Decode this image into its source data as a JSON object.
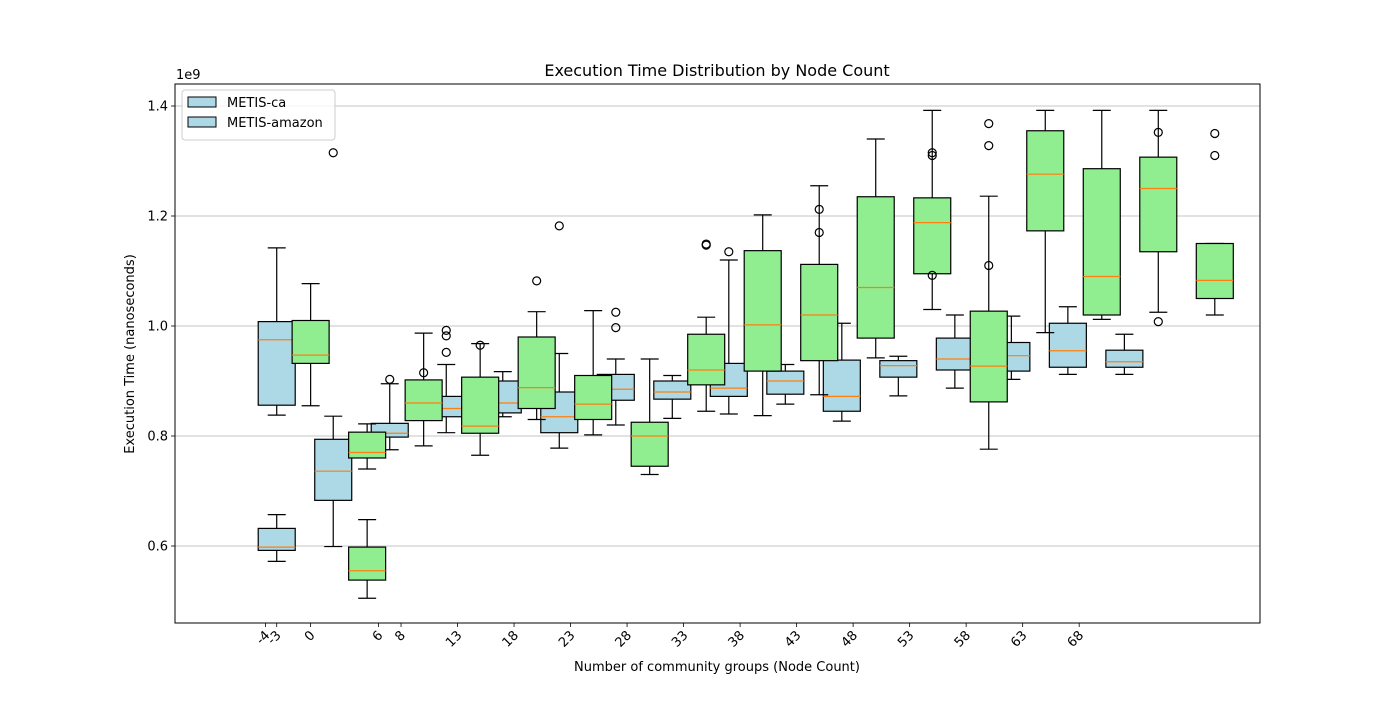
{
  "chart_data": {
    "type": "box",
    "title": "Execution Time Distribution by Node Count",
    "xlabel": "Number of community groups (Node Count)",
    "ylabel": "Execution Time (nanoseconds)",
    "y_offset_label": "1e9",
    "ylim": [
      0.46,
      1.44
    ],
    "y_unit_multiplier": 1000000000,
    "yticks": [
      0.6,
      0.8,
      1.0,
      1.2,
      1.4
    ],
    "ytick_labels": [
      "0.6",
      "0.8",
      "1.0",
      "1.2",
      "1.4"
    ],
    "xlim": [
      -12,
      84
    ],
    "xticks": [
      -4,
      -3,
      0,
      6,
      8,
      13,
      18,
      23,
      28,
      33,
      38,
      43,
      48,
      53,
      58,
      63,
      68
    ],
    "xtick_labels": [
      "-4",
      "-3",
      "0",
      "6",
      "8",
      "13",
      "18",
      "23",
      "28",
      "33",
      "38",
      "43",
      "48",
      "53",
      "58",
      "63",
      "68"
    ],
    "grid": "y",
    "legend_position": "upper-left",
    "median_color": "#ff7f0e",
    "series": [
      {
        "name": "METIS-ca",
        "color": "#add8e6",
        "boxes": [
          {
            "x": -3,
            "whislo": 0.838,
            "q1": 0.856,
            "med": 0.975,
            "q3": 1.008,
            "whishi": 1.142,
            "fliers": []
          },
          {
            "x": -3,
            "whislo": 0.572,
            "q1": 0.592,
            "med": 0.598,
            "q3": 0.632,
            "whishi": 0.657,
            "fliers": []
          },
          {
            "x": 2,
            "whislo": 0.599,
            "q1": 0.683,
            "med": 0.736,
            "q3": 0.794,
            "whishi": 0.836,
            "fliers": [
              1.315
            ]
          },
          {
            "x": 7,
            "whislo": 0.775,
            "q1": 0.798,
            "med": 0.805,
            "q3": 0.823,
            "whishi": 0.895,
            "fliers": [
              0.903
            ]
          },
          {
            "x": 12,
            "whislo": 0.806,
            "q1": 0.835,
            "med": 0.85,
            "q3": 0.872,
            "whishi": 0.93,
            "fliers": [
              0.952,
              0.982,
              0.992
            ]
          },
          {
            "x": 17,
            "whislo": 0.835,
            "q1": 0.842,
            "med": 0.86,
            "q3": 0.9,
            "whishi": 0.917,
            "fliers": []
          },
          {
            "x": 22,
            "whislo": 0.778,
            "q1": 0.806,
            "med": 0.835,
            "q3": 0.88,
            "whishi": 0.95,
            "fliers": [
              1.182
            ]
          },
          {
            "x": 27,
            "whislo": 0.82,
            "q1": 0.865,
            "med": 0.885,
            "q3": 0.912,
            "whishi": 0.94,
            "fliers": [
              0.997,
              1.025
            ]
          },
          {
            "x": 32,
            "whislo": 0.832,
            "q1": 0.867,
            "med": 0.88,
            "q3": 0.9,
            "whishi": 0.91,
            "fliers": []
          },
          {
            "x": 37,
            "whislo": 0.84,
            "q1": 0.872,
            "med": 0.887,
            "q3": 0.932,
            "whishi": 1.12,
            "fliers": [
              1.135
            ]
          },
          {
            "x": 42,
            "whislo": 0.858,
            "q1": 0.876,
            "med": 0.9,
            "q3": 0.918,
            "whishi": 0.93,
            "fliers": []
          },
          {
            "x": 47,
            "whislo": 0.827,
            "q1": 0.845,
            "med": 0.872,
            "q3": 0.938,
            "whishi": 1.005,
            "fliers": []
          },
          {
            "x": 52,
            "whislo": 0.873,
            "q1": 0.907,
            "med": 0.928,
            "q3": 0.937,
            "whishi": 0.945,
            "fliers": []
          },
          {
            "x": 57,
            "whislo": 0.887,
            "q1": 0.92,
            "med": 0.94,
            "q3": 0.978,
            "whishi": 1.02,
            "fliers": []
          },
          {
            "x": 62,
            "whislo": 0.903,
            "q1": 0.918,
            "med": 0.946,
            "q3": 0.97,
            "whishi": 1.018,
            "fliers": []
          },
          {
            "x": 67,
            "whislo": 0.912,
            "q1": 0.925,
            "med": 0.955,
            "q3": 1.005,
            "whishi": 1.035,
            "fliers": []
          },
          {
            "x": 72,
            "whislo": 0.912,
            "q1": 0.925,
            "med": 0.935,
            "q3": 0.956,
            "whishi": 0.985,
            "fliers": []
          }
        ]
      },
      {
        "name": "METIS-amazon",
        "color": "#90ee90",
        "boxes": [
          {
            "x": 0,
            "whislo": 0.855,
            "q1": 0.932,
            "med": 0.947,
            "q3": 1.01,
            "whishi": 1.077,
            "fliers": []
          },
          {
            "x": 5,
            "whislo": 0.505,
            "q1": 0.538,
            "med": 0.555,
            "q3": 0.598,
            "whishi": 0.648,
            "fliers": []
          },
          {
            "x": 5,
            "whislo": 0.74,
            "q1": 0.76,
            "med": 0.77,
            "q3": 0.807,
            "whishi": 0.822,
            "fliers": []
          },
          {
            "x": 10,
            "whislo": 0.782,
            "q1": 0.828,
            "med": 0.86,
            "q3": 0.902,
            "whishi": 0.987,
            "fliers": [
              0.915
            ]
          },
          {
            "x": 15,
            "whislo": 0.765,
            "q1": 0.805,
            "med": 0.818,
            "q3": 0.907,
            "whishi": 0.968,
            "fliers": [
              0.965
            ]
          },
          {
            "x": 20,
            "whislo": 0.83,
            "q1": 0.85,
            "med": 0.888,
            "q3": 0.98,
            "whishi": 1.026,
            "fliers": [
              1.082
            ]
          },
          {
            "x": 25,
            "whislo": 0.802,
            "q1": 0.83,
            "med": 0.858,
            "q3": 0.91,
            "whishi": 1.028,
            "fliers": []
          },
          {
            "x": 30,
            "whislo": 0.73,
            "q1": 0.745,
            "med": 0.8,
            "q3": 0.825,
            "whishi": 0.94,
            "fliers": []
          },
          {
            "x": 35,
            "whislo": 0.845,
            "q1": 0.893,
            "med": 0.92,
            "q3": 0.985,
            "whishi": 1.016,
            "fliers": [
              1.147,
              1.149
            ]
          },
          {
            "x": 40,
            "whislo": 0.837,
            "q1": 0.918,
            "med": 1.002,
            "q3": 1.137,
            "whishi": 1.202,
            "fliers": []
          },
          {
            "x": 45,
            "whislo": 0.875,
            "q1": 0.937,
            "med": 1.02,
            "q3": 1.112,
            "whishi": 1.255,
            "fliers": [
              1.17,
              1.212
            ]
          },
          {
            "x": 50,
            "whislo": 0.942,
            "q1": 0.978,
            "med": 1.07,
            "q3": 1.235,
            "whishi": 1.34,
            "fliers": []
          },
          {
            "x": 55,
            "whislo": 1.03,
            "q1": 1.095,
            "med": 1.188,
            "q3": 1.233,
            "whishi": 1.392,
            "fliers": [
              1.092,
              1.31,
              1.315
            ]
          },
          {
            "x": 60,
            "whislo": 0.776,
            "q1": 0.862,
            "med": 0.927,
            "q3": 1.027,
            "whishi": 1.236,
            "fliers": [
              1.11,
              1.328,
              1.368
            ]
          },
          {
            "x": 65,
            "whislo": 0.988,
            "q1": 1.173,
            "med": 1.276,
            "q3": 1.355,
            "whishi": 1.392,
            "fliers": []
          },
          {
            "x": 70,
            "whislo": 1.012,
            "q1": 1.02,
            "med": 1.09,
            "q3": 1.286,
            "whishi": 1.392,
            "fliers": []
          },
          {
            "x": 75,
            "whislo": 1.025,
            "q1": 1.135,
            "med": 1.25,
            "q3": 1.307,
            "whishi": 1.392,
            "fliers": [
              1.008,
              1.352
            ]
          },
          {
            "x": 80,
            "whislo": 1.02,
            "q1": 1.05,
            "med": 1.083,
            "q3": 1.15,
            "whishi": 1.15,
            "fliers": [
              1.31,
              1.35
            ]
          }
        ]
      }
    ]
  }
}
